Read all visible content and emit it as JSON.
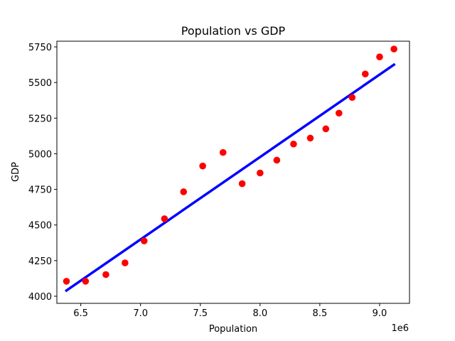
{
  "chart_data": {
    "type": "scatter",
    "title": "Population vs GDP",
    "xlabel": "Population",
    "ylabel": "GDP",
    "x_offset_label": "1e6",
    "xlim": [
      6.3,
      9.25
    ],
    "ylim": [
      3950,
      5790
    ],
    "x_ticks": [
      6.5,
      7.0,
      7.5,
      8.0,
      8.5,
      9.0
    ],
    "x_tick_labels": [
      "6.5",
      "7.0",
      "7.5",
      "8.0",
      "8.5",
      "9.0"
    ],
    "y_ticks": [
      4000,
      4250,
      4500,
      4750,
      5000,
      5250,
      5500,
      5750
    ],
    "y_tick_labels": [
      "4000",
      "4250",
      "4500",
      "4750",
      "5000",
      "5250",
      "5500",
      "5750"
    ],
    "grid": false,
    "series": [
      {
        "kind": "points",
        "color": "#ff0000",
        "x": [
          6.38,
          6.54,
          6.71,
          6.87,
          7.03,
          7.2,
          7.36,
          7.52,
          7.69,
          7.85,
          8.0,
          8.14,
          8.28,
          8.42,
          8.55,
          8.66,
          8.77,
          8.88,
          9.0,
          9.12
        ],
        "y": [
          4105,
          4105,
          4152,
          4234,
          4388,
          4544,
          4733,
          4914,
          5009,
          4790,
          4865,
          4955,
          5068,
          5110,
          5175,
          5285,
          5395,
          5560,
          5680,
          5735
        ]
      },
      {
        "kind": "fit-line",
        "color": "#0000ff",
        "x": [
          6.38,
          9.12
        ],
        "y": [
          4040,
          5625
        ]
      }
    ]
  }
}
